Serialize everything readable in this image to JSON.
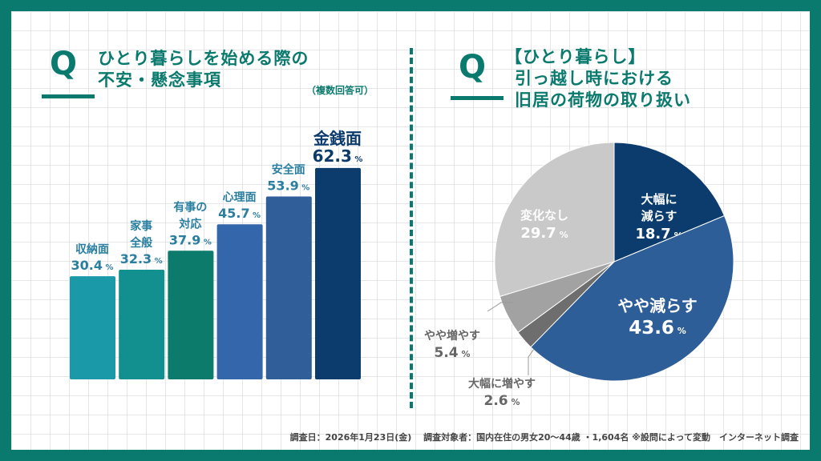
{
  "left": {
    "q": "Q",
    "title_line1": "ひとり暮らしを始める際の",
    "title_line2": "不安・懸念事項",
    "note": "（複数回答可）"
  },
  "right": {
    "q": "Q",
    "title_line1": "【ひとり暮らし】",
    "title_line2": "引っ越し時における",
    "title_line3": "旧居の荷物の取り扱い"
  },
  "footer": "調査日：2026年1月23日(金)　 調査対象者：国内在住の男女20～44歳 ・1,604名 ※設問によって変動　インターネット調査",
  "chart_data": [
    {
      "type": "bar",
      "categories": [
        "収納面",
        "家事全般",
        "有事の対応",
        "心理面",
        "安全面",
        "金銭面"
      ],
      "values": [
        30.4,
        32.3,
        37.9,
        45.7,
        53.9,
        62.3
      ],
      "unit": "%",
      "colors": [
        "#1a99a8",
        "#128f8f",
        "#0d7b6c",
        "#3366aa",
        "#2f5e98",
        "#0c3c6d"
      ],
      "label_lines": [
        [
          "収納面"
        ],
        [
          "家事",
          "全般"
        ],
        [
          "有事の",
          "対応"
        ],
        [
          "心理面"
        ],
        [
          "安全面"
        ],
        [
          "金銭面"
        ]
      ]
    },
    {
      "type": "pie",
      "unit": "%",
      "start": "12 o'clock, clockwise",
      "slices": [
        {
          "label": "大幅に減らす",
          "lines": [
            "大幅に",
            "減らす"
          ],
          "value": 18.7,
          "color": "#0c3c6d"
        },
        {
          "label": "やや減らす",
          "lines": [
            "やや減らす"
          ],
          "value": 43.6,
          "color": "#2e5e98"
        },
        {
          "label": "大幅に増やす",
          "lines": [
            "大幅に増やす"
          ],
          "value": 2.6,
          "color": "#6e6e6e"
        },
        {
          "label": "やや増やす",
          "lines": [
            "やや増やす"
          ],
          "value": 5.4,
          "color": "#a2a2a2"
        },
        {
          "label": "変化なし",
          "lines": [
            "変化なし"
          ],
          "value": 29.7,
          "color": "#c9c9c9"
        }
      ]
    }
  ]
}
